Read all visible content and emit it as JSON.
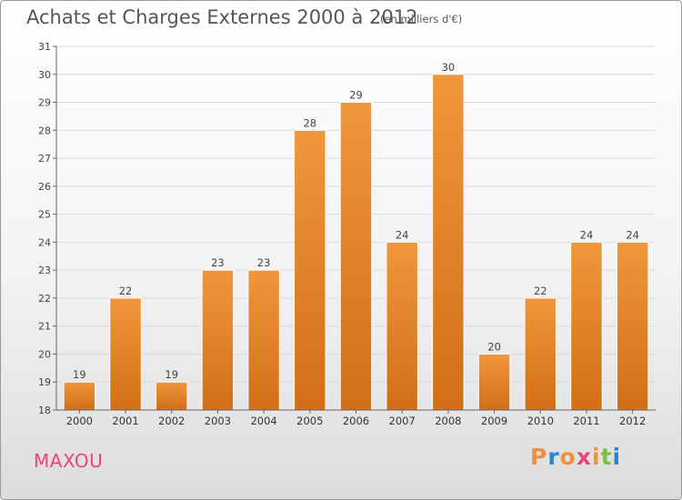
{
  "title": "Achats et Charges Externes 2000 à 2012",
  "subtitle": "(en milliers d'€)",
  "commune": "MAXOU",
  "logo": {
    "letters": [
      "P",
      "r",
      "o",
      "x",
      "i",
      "t",
      "i"
    ],
    "colors": [
      "#f0913a",
      "#2a86d0",
      "#f0913a",
      "#e8467a",
      "#f0913a",
      "#7cc04a",
      "#2a86d0"
    ]
  },
  "chart_data": {
    "type": "bar",
    "title": "Achats et Charges Externes 2000 à 2012",
    "xlabel": "",
    "ylabel": "",
    "categories": [
      "2000",
      "2001",
      "2002",
      "2003",
      "2004",
      "2005",
      "2006",
      "2007",
      "2008",
      "2009",
      "2010",
      "2011",
      "2012"
    ],
    "values": [
      19,
      22,
      19,
      23,
      23,
      28,
      29,
      24,
      30,
      20,
      22,
      24,
      24
    ],
    "ylim": [
      18,
      31
    ],
    "yticks": [
      18,
      19,
      20,
      21,
      22,
      23,
      24,
      25,
      26,
      27,
      28,
      29,
      30,
      31
    ],
    "bar_color": "#f0963c",
    "bar_color_dark": "#d26f16",
    "grid": true
  }
}
